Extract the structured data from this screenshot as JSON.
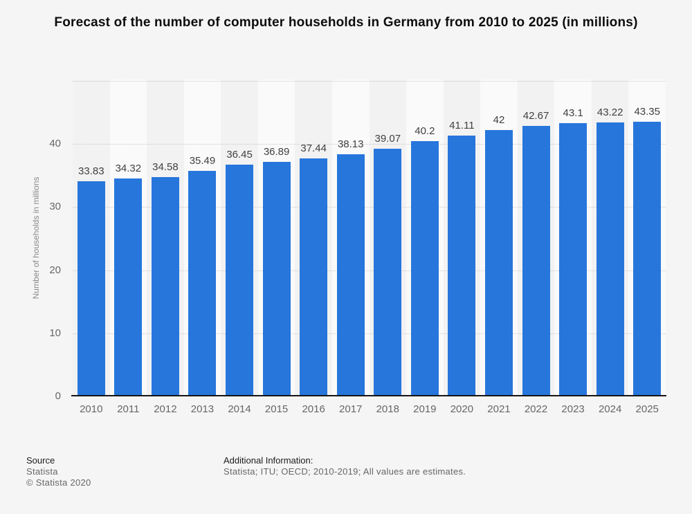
{
  "page": {
    "background_color": "#f5f5f5"
  },
  "title": "Forecast of the number of computer households in Germany from 2010 to 2025 (in millions)",
  "chart_data": {
    "type": "bar",
    "title": "Forecast of the number of computer households in Germany from 2010 to 2025 (in millions)",
    "categories": [
      "2010",
      "2011",
      "2012",
      "2013",
      "2014",
      "2015",
      "2016",
      "2017",
      "2018",
      "2019",
      "2020",
      "2021",
      "2022",
      "2023",
      "2024",
      "2025"
    ],
    "values": [
      33.83,
      34.32,
      34.58,
      35.49,
      36.45,
      36.89,
      37.44,
      38.13,
      39.07,
      40.2,
      41.11,
      42,
      42.67,
      43.1,
      43.22,
      43.35
    ],
    "xlabel": "",
    "ylabel": "Number of households in millions",
    "yticks": [
      0,
      10,
      20,
      30,
      40
    ],
    "gridline_values": [
      10,
      20,
      30,
      40,
      50
    ],
    "ylim": [
      0,
      50.2
    ],
    "grid": "horizontal-dotted",
    "legend": "none",
    "value_labels_shown": true,
    "bar_color": "#2776dc",
    "band_colors": [
      "#f2f2f2",
      "#fafafa"
    ],
    "gridline_color": "#c9c9c9",
    "axis_line_color": "#141414"
  },
  "footer": {
    "source_heading": "Source",
    "source_name": "Statista",
    "copyright": "© Statista 2020",
    "additional_heading": "Additional Information:",
    "additional_text": "Statista; ITU; OECD; 2010-2019; All values are estimates."
  }
}
